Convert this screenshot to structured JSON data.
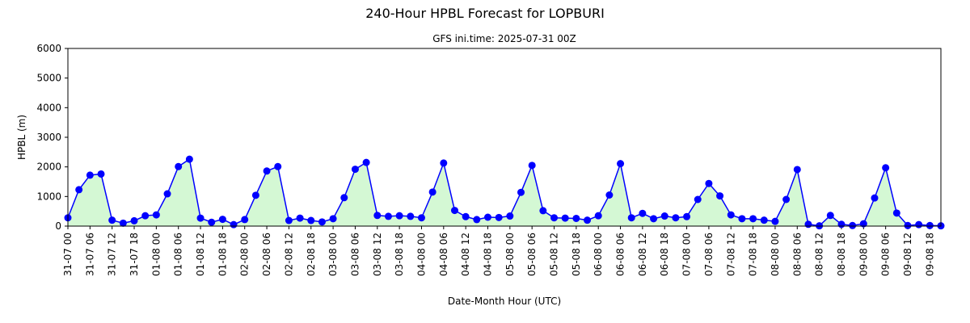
{
  "chart_data": {
    "type": "line",
    "title": "240-Hour HPBL Forecast for LOPBURI",
    "subtitle": "GFS ini.time: 2025-07-31 00Z",
    "xlabel": "Date-Month Hour (UTC)",
    "ylabel": "HPBL (m)",
    "ylim": [
      0,
      6000
    ],
    "y_ticks": [
      0,
      1000,
      2000,
      3000,
      4000,
      5000,
      6000
    ],
    "x_step_hours": 3,
    "x_tick_labels": [
      "31-07 00",
      "31-07 06",
      "31-07 12",
      "31-07 18",
      "01-08 00",
      "01-08 06",
      "01-08 12",
      "01-08 18",
      "02-08 00",
      "02-08 06",
      "02-08 12",
      "02-08 18",
      "03-08 00",
      "03-08 06",
      "03-08 12",
      "03-08 18",
      "04-08 00",
      "04-08 06",
      "04-08 12",
      "04-08 18",
      "05-08 00",
      "05-08 06",
      "05-08 12",
      "05-08 18",
      "06-08 00",
      "06-08 06",
      "06-08 12",
      "06-08 18",
      "07-08 00",
      "07-08 06",
      "07-08 12",
      "07-08 18",
      "08-08 00",
      "08-08 06",
      "08-08 12",
      "08-08 18",
      "09-08 00",
      "09-08 06",
      "09-08 12",
      "09-08 18"
    ],
    "grid": false,
    "series": [
      {
        "values": [
          280,
          1230,
          1720,
          1760,
          200,
          100,
          180,
          350,
          380,
          1090,
          2010,
          2260,
          270,
          130,
          230,
          50,
          220,
          1040,
          1860,
          2010,
          190,
          270,
          190,
          140,
          250,
          960,
          1920,
          2150,
          360,
          330,
          350,
          330,
          280,
          1150,
          2130,
          530,
          320,
          220,
          300,
          290,
          340,
          1140,
          2050,
          520,
          280,
          270,
          260,
          200,
          350,
          1050,
          2110,
          280,
          430,
          250,
          340,
          280,
          320,
          900,
          1440,
          1020,
          380,
          250,
          250,
          200,
          160,
          900,
          1910,
          60,
          10,
          360,
          60,
          20,
          80,
          950,
          1970,
          440,
          20,
          50,
          20,
          10
        ],
        "line_color": "#0000ff",
        "marker_color": "#0000ff",
        "fill_color": "#d4f8d4"
      }
    ]
  }
}
